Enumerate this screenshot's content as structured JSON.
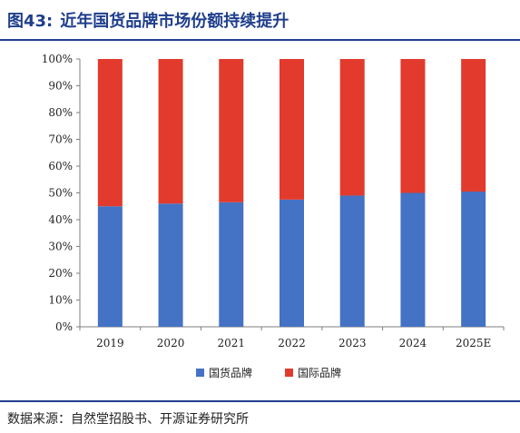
{
  "header": {
    "figure_number": "图43:",
    "title": "近年国货品牌市场份额持续提升"
  },
  "source_note": "数据来源：自然堂招股书、开源证券研究所",
  "colors": {
    "domestic": "#4472c4",
    "international": "#e23a2c",
    "accent": "#1f3e8c"
  },
  "chart_data": {
    "type": "bar",
    "stacked": true,
    "categories": [
      "2019",
      "2020",
      "2021",
      "2022",
      "2023",
      "2024",
      "2025E"
    ],
    "series": [
      {
        "name": "国货品牌",
        "values": [
          45.0,
          46.0,
          46.5,
          47.5,
          49.0,
          50.0,
          50.5
        ]
      },
      {
        "name": "国际品牌",
        "values": [
          55.0,
          54.0,
          53.5,
          52.5,
          51.0,
          50.0,
          49.5
        ]
      }
    ],
    "ylim": [
      0,
      100
    ],
    "yticks": [
      "0%",
      "10%",
      "20%",
      "30%",
      "40%",
      "50%",
      "60%",
      "70%",
      "80%",
      "90%",
      "100%"
    ],
    "grid": false,
    "legend_position": "bottom"
  }
}
